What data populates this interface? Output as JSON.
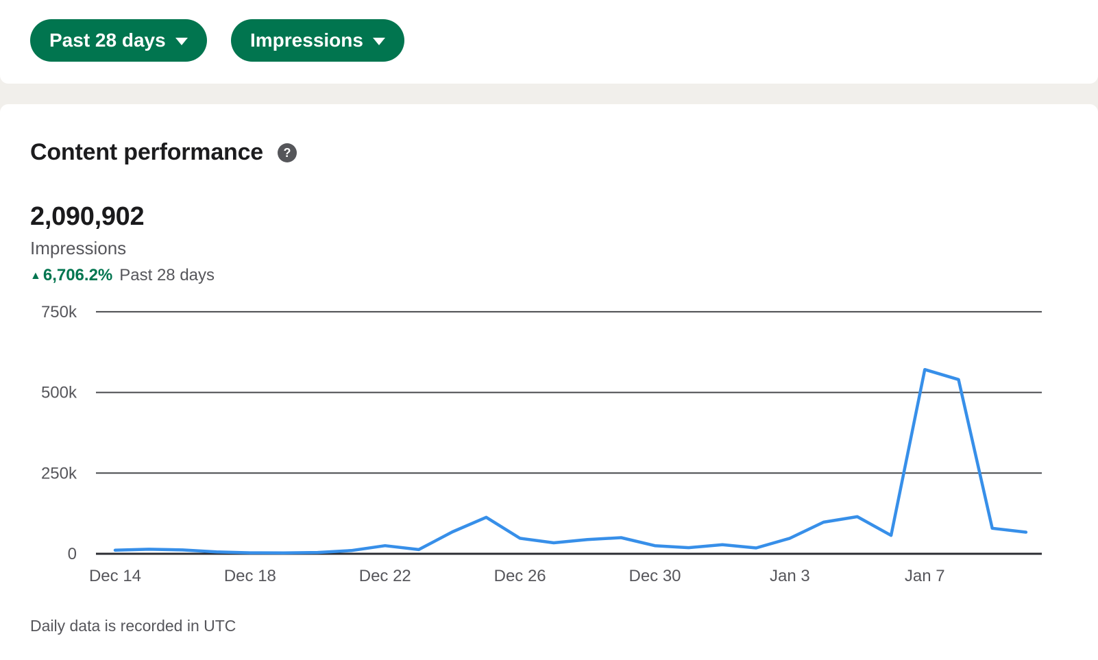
{
  "colors": {
    "accent_green": "#01754f",
    "line_blue": "#378fe9",
    "grid_line": "#47484c",
    "axis_line": "#2c2d33",
    "muted_text": "#56565b",
    "dark_text": "#1c1c1e",
    "page_bg": "#f1efeb",
    "card_bg": "#ffffff"
  },
  "toolbar": {
    "date_range_label": "Past 28 days",
    "metric_label": "Impressions"
  },
  "card": {
    "title": "Content performance",
    "help_glyph": "?",
    "total_value": "2,090,902",
    "metric_label": "Impressions",
    "delta_icon": "▲",
    "delta_percent": "6,706.2%",
    "delta_period": "Past 28 days",
    "footnote": "Daily data is recorded in UTC"
  },
  "chart_data": {
    "type": "line",
    "title": "Content performance",
    "series_name": "Impressions",
    "x": [
      "Dec 14",
      "Dec 15",
      "Dec 16",
      "Dec 17",
      "Dec 18",
      "Dec 19",
      "Dec 20",
      "Dec 21",
      "Dec 22",
      "Dec 23",
      "Dec 24",
      "Dec 25",
      "Dec 26",
      "Dec 27",
      "Dec 28",
      "Dec 29",
      "Dec 30",
      "Dec 31",
      "Jan 1",
      "Jan 2",
      "Jan 3",
      "Jan 4",
      "Jan 5",
      "Jan 6",
      "Jan 7",
      "Jan 8",
      "Jan 9",
      "Jan 10"
    ],
    "values": [
      11000,
      14000,
      12000,
      6000,
      3000,
      2500,
      4000,
      10000,
      25000,
      13000,
      68000,
      113000,
      48000,
      34000,
      44000,
      50000,
      25000,
      19000,
      28000,
      18000,
      48000,
      98000,
      115000,
      57000,
      571000,
      540000,
      79000,
      67000
    ],
    "x_tick_every": 4,
    "x_tick_labels": [
      "Dec 14",
      "Dec 18",
      "Dec 22",
      "Dec 26",
      "Dec 30",
      "Jan 3",
      "Jan 7"
    ],
    "y_ticks": [
      0,
      250000,
      500000,
      750000
    ],
    "y_tick_labels": [
      "0",
      "250k",
      "500k",
      "750k"
    ],
    "ylim": [
      0,
      750000
    ],
    "grid": true,
    "legend_position": "none",
    "line_color": "#378fe9"
  }
}
